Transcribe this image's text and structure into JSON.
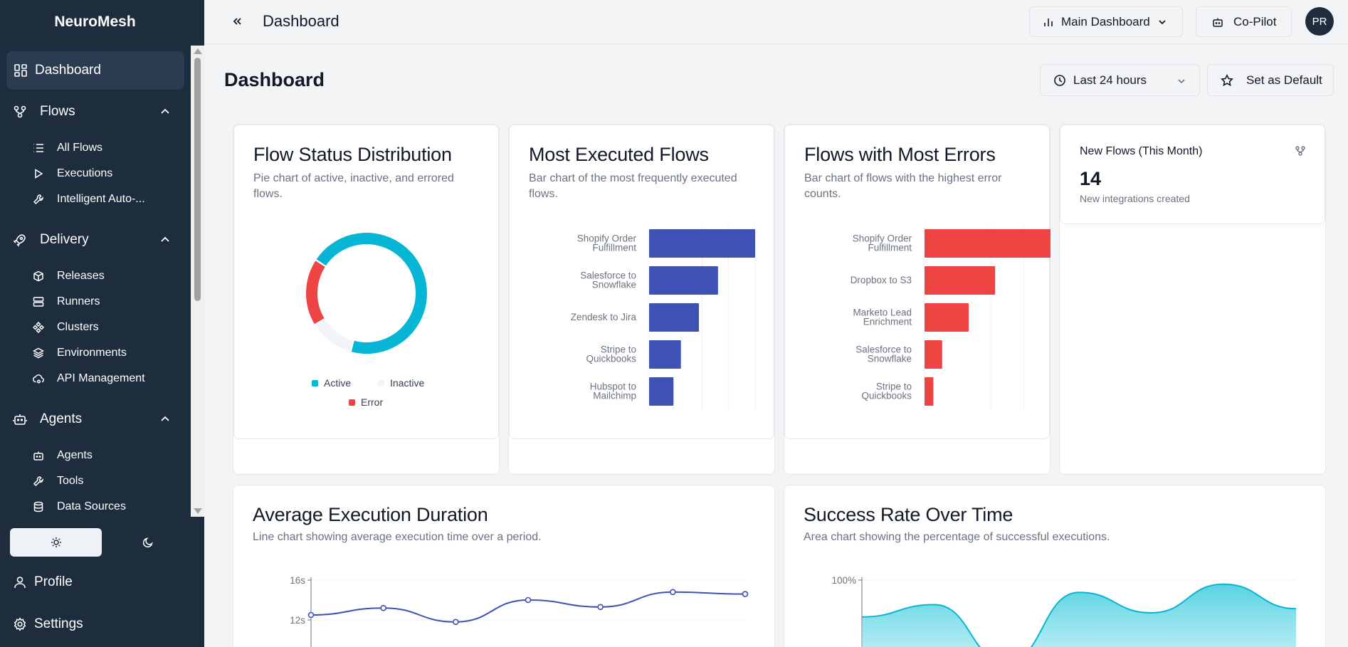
{
  "app": {
    "name": "NeuroMesh"
  },
  "sidebar": {
    "dashboard": "Dashboard",
    "sections": [
      {
        "label": "Flows",
        "items": [
          "All Flows",
          "Executions",
          "Intelligent Auto-..."
        ]
      },
      {
        "label": "Delivery",
        "items": [
          "Releases",
          "Runners",
          "Clusters",
          "Environments",
          "API Management"
        ]
      },
      {
        "label": "Agents",
        "items": [
          "Agents",
          "Tools",
          "Data Sources"
        ]
      }
    ],
    "profile": "Profile",
    "settings": "Settings"
  },
  "topbar": {
    "title": "Dashboard",
    "dashboard_select": "Main Dashboard",
    "copilot": "Co-Pilot",
    "avatar": "PR"
  },
  "page": {
    "title": "Dashboard",
    "time_range": "Last 24 hours",
    "set_default": "Set as Default"
  },
  "colors": {
    "accent": "#1e2d3d",
    "cyan": "#06b6d4",
    "red": "#ef4444",
    "indigo": "#3f51b5",
    "inactive": "#f1f5f9"
  },
  "cards": {
    "status": {
      "title": "Flow Status Distribution",
      "desc": "Pie chart of active, inactive, and errored flows."
    },
    "executed": {
      "title": "Most Executed Flows",
      "desc": "Bar chart of the most frequently executed flows."
    },
    "errors": {
      "title": "Flows with Most Errors",
      "desc": "Bar chart of flows with the highest error counts."
    },
    "new_flows": {
      "title": "New Flows (This Month)",
      "value": "14",
      "sub": "New integrations created"
    },
    "duration": {
      "title": "Average Execution Duration",
      "desc": "Line chart showing average execution time over a period."
    },
    "success": {
      "title": "Success Rate Over Time",
      "desc": "Area chart showing the percentage of successful executions."
    }
  },
  "chart_data": [
    {
      "type": "pie",
      "title": "Flow Status Distribution",
      "labels": [
        "Active",
        "Inactive",
        "Error"
      ],
      "values": [
        70,
        12,
        18
      ]
    },
    {
      "type": "bar",
      "orientation": "horizontal",
      "title": "Most Executed Flows",
      "categories": [
        [
          "Shopify Order",
          "Fulfillment"
        ],
        [
          "Salesforce to",
          "Snowflake"
        ],
        [
          "Zendesk to Jira"
        ],
        [
          "Stripe to",
          "Quickbooks"
        ],
        [
          "Hubspot to",
          "Mailchimp"
        ]
      ],
      "values": [
        100,
        65,
        47,
        30,
        23
      ]
    },
    {
      "type": "bar",
      "orientation": "horizontal",
      "title": "Flows with Most Errors",
      "categories": [
        [
          "Shopify Order",
          "Fulfillment"
        ],
        [
          "Dropbox to S3"
        ],
        [
          "Marketo Lead",
          "Enrichment"
        ],
        [
          "Salesforce to",
          "Snowflake"
        ],
        [
          "Stripe to",
          "Quickbooks"
        ]
      ],
      "values": [
        75,
        40,
        25,
        10,
        5
      ]
    },
    {
      "type": "line",
      "title": "Average Execution Duration",
      "yticks": [
        "16s",
        "12s"
      ],
      "ytick_values": [
        16,
        12
      ],
      "values": [
        12.5,
        13.2,
        11.8,
        14.0,
        13.3,
        14.8,
        14.6
      ]
    },
    {
      "type": "area",
      "title": "Success Rate Over Time",
      "yticks": [
        "100%"
      ],
      "ytick_values": [
        100
      ],
      "values": [
        91,
        94,
        80,
        97,
        92,
        99,
        93
      ]
    }
  ]
}
